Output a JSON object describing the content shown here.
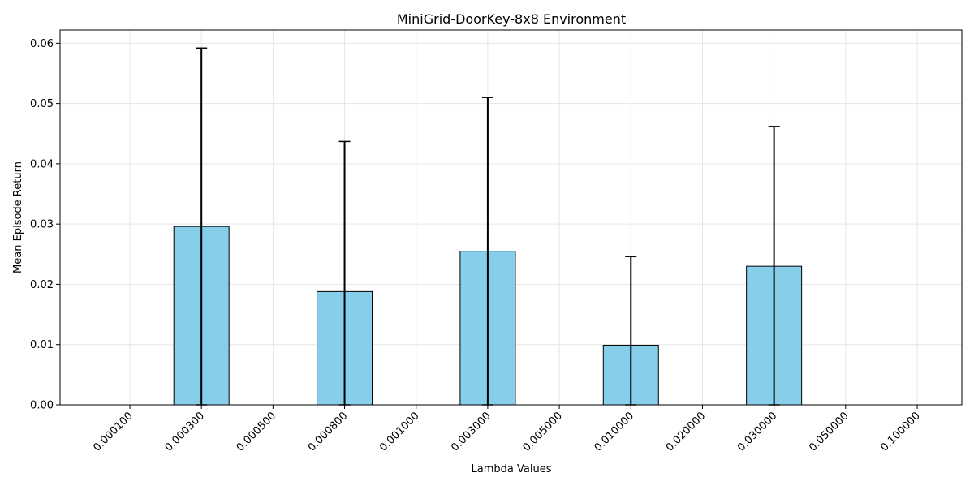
{
  "chart_data": {
    "type": "bar",
    "title": "MiniGrid-DoorKey-8x8 Environment",
    "xlabel": "Lambda Values",
    "ylabel": "Mean Episode Return",
    "categories": [
      "0.000100",
      "0.000300",
      "0.000500",
      "0.000800",
      "0.001000",
      "0.003000",
      "0.005000",
      "0.010000",
      "0.020000",
      "0.030000",
      "0.050000",
      "0.100000"
    ],
    "values": [
      0.0,
      0.0296,
      0.0,
      0.0188,
      0.0,
      0.0255,
      0.0,
      0.0099,
      0.0,
      0.023,
      0.0,
      0.0
    ],
    "error": [
      0.0,
      0.0296,
      0.0,
      0.0249,
      0.0,
      0.0255,
      0.0,
      0.0147,
      0.0,
      0.0232,
      0.0,
      0.0
    ],
    "ylim": [
      0,
      0.0622
    ],
    "yticks": [
      "0.00",
      "0.01",
      "0.02",
      "0.03",
      "0.04",
      "0.05",
      "0.06"
    ],
    "grid": true,
    "colors": {
      "bar_fill": "#87ceeb",
      "bar_edge": "#000000",
      "grid": "#e6e6e6",
      "error_bar": "#000000"
    }
  }
}
